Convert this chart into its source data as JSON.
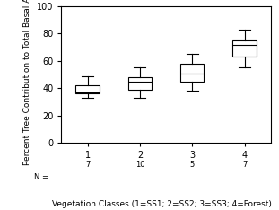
{
  "title": "",
  "ylabel": "Percent Tree Contribution to Total Basal Area",
  "xlabel": "Vegetation Classes (1=SS1; 2=SS2; 3=SS3; 4=Forest)",
  "ylim": [
    0,
    100
  ],
  "yticks": [
    0,
    20,
    40,
    60,
    80,
    100
  ],
  "categories": [
    1,
    2,
    3,
    4
  ],
  "n_labels": [
    "7",
    "10",
    "5",
    "7"
  ],
  "boxes": [
    {
      "whislo": 33,
      "q1": 36,
      "med": 37,
      "q3": 42,
      "whishi": 49
    },
    {
      "whislo": 33,
      "q1": 39,
      "med": 45,
      "q3": 48,
      "whishi": 55
    },
    {
      "whislo": 38,
      "q1": 45,
      "med": 51,
      "q3": 58,
      "whishi": 65
    },
    {
      "whislo": 55,
      "q1": 63,
      "med": 72,
      "q3": 75,
      "whishi": 83
    }
  ],
  "box_facecolor": "white",
  "box_edgecolor": "black",
  "background_color": "white",
  "box_width": 0.45,
  "ylabel_fontsize": 6.5,
  "xlabel_fontsize": 6.5,
  "tick_fontsize": 7,
  "n_fontsize": 6
}
